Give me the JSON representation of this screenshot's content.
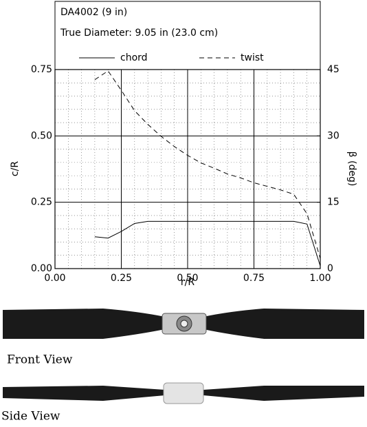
{
  "chart_data": {
    "type": "line",
    "title": "DA4002 (9 in)",
    "subtitle": "True Diameter:  9.05 in (23.0 cm)",
    "x_label": "r/R",
    "y_label": "c/R",
    "y2_label": "β (deg)",
    "x": [
      0.15,
      0.2,
      0.25,
      0.3,
      0.35,
      0.4,
      0.45,
      0.5,
      0.55,
      0.6,
      0.65,
      0.7,
      0.75,
      0.8,
      0.85,
      0.9,
      0.95,
      1.0
    ],
    "series": [
      {
        "name": "chord",
        "color": "#000000",
        "style": "solid",
        "values": [
          0.12,
          0.115,
          0.14,
          0.17,
          0.178,
          0.178,
          0.178,
          0.178,
          0.178,
          0.178,
          0.178,
          0.178,
          0.178,
          0.178,
          0.178,
          0.178,
          0.168,
          0.01
        ]
      },
      {
        "name": "twist",
        "color": "#000000",
        "style": "dashed",
        "axis": "y2",
        "values": [
          42.7,
          44.7,
          40.3,
          35.7,
          32.6,
          29.9,
          27.6,
          25.6,
          23.9,
          22.7,
          21.4,
          20.5,
          19.4,
          18.6,
          17.8,
          16.8,
          12.4,
          2.3
        ]
      }
    ],
    "xlim": [
      0,
      1
    ],
    "ylim": [
      0,
      0.75
    ],
    "y2lim": [
      0,
      45
    ],
    "xticks": [
      {
        "value": 0,
        "label": "0.00"
      },
      {
        "value": 0.25,
        "label": "0.25"
      },
      {
        "value": 0.5,
        "label": "0.50"
      },
      {
        "value": 0.75,
        "label": "0.75"
      },
      {
        "value": 1,
        "label": "1.00"
      }
    ],
    "yticks": [
      {
        "value": 0,
        "label": "0.00"
      },
      {
        "value": 0.25,
        "label": "0.25"
      },
      {
        "value": 0.5,
        "label": "0.50"
      },
      {
        "value": 0.75,
        "label": "0.75"
      }
    ],
    "y2ticks": [
      0,
      15,
      30,
      45
    ],
    "grid": true,
    "minor_grid": 5
  },
  "photos": {
    "front_caption": "Front View",
    "side_caption": "Side View"
  }
}
